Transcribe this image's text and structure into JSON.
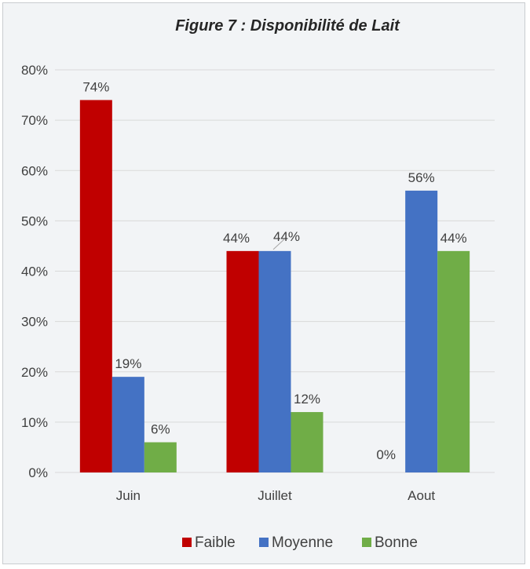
{
  "chart_data": {
    "type": "bar",
    "title": "Figure 7 : Disponibilité de Lait",
    "categories": [
      "Juin",
      "Juillet",
      "Aout"
    ],
    "series": [
      {
        "name": "Faible",
        "values": [
          74,
          44,
          0
        ],
        "labels": [
          "74%",
          "44%",
          "0%"
        ],
        "color": "#c00000"
      },
      {
        "name": "Moyenne",
        "values": [
          19,
          44,
          56
        ],
        "labels": [
          "19%",
          "44%",
          "56%"
        ],
        "color": "#4472c4"
      },
      {
        "name": "Bonne",
        "values": [
          6,
          12,
          44
        ],
        "labels": [
          "6%",
          "12%",
          "44%"
        ],
        "color": "#70ad47"
      }
    ],
    "y_ticks": [
      "0%",
      "10%",
      "20%",
      "30%",
      "40%",
      "50%",
      "60%",
      "70%",
      "80%"
    ],
    "ylim": [
      0,
      80
    ],
    "xlabel": "",
    "ylabel": "",
    "grid": true,
    "legend": "bottom"
  }
}
